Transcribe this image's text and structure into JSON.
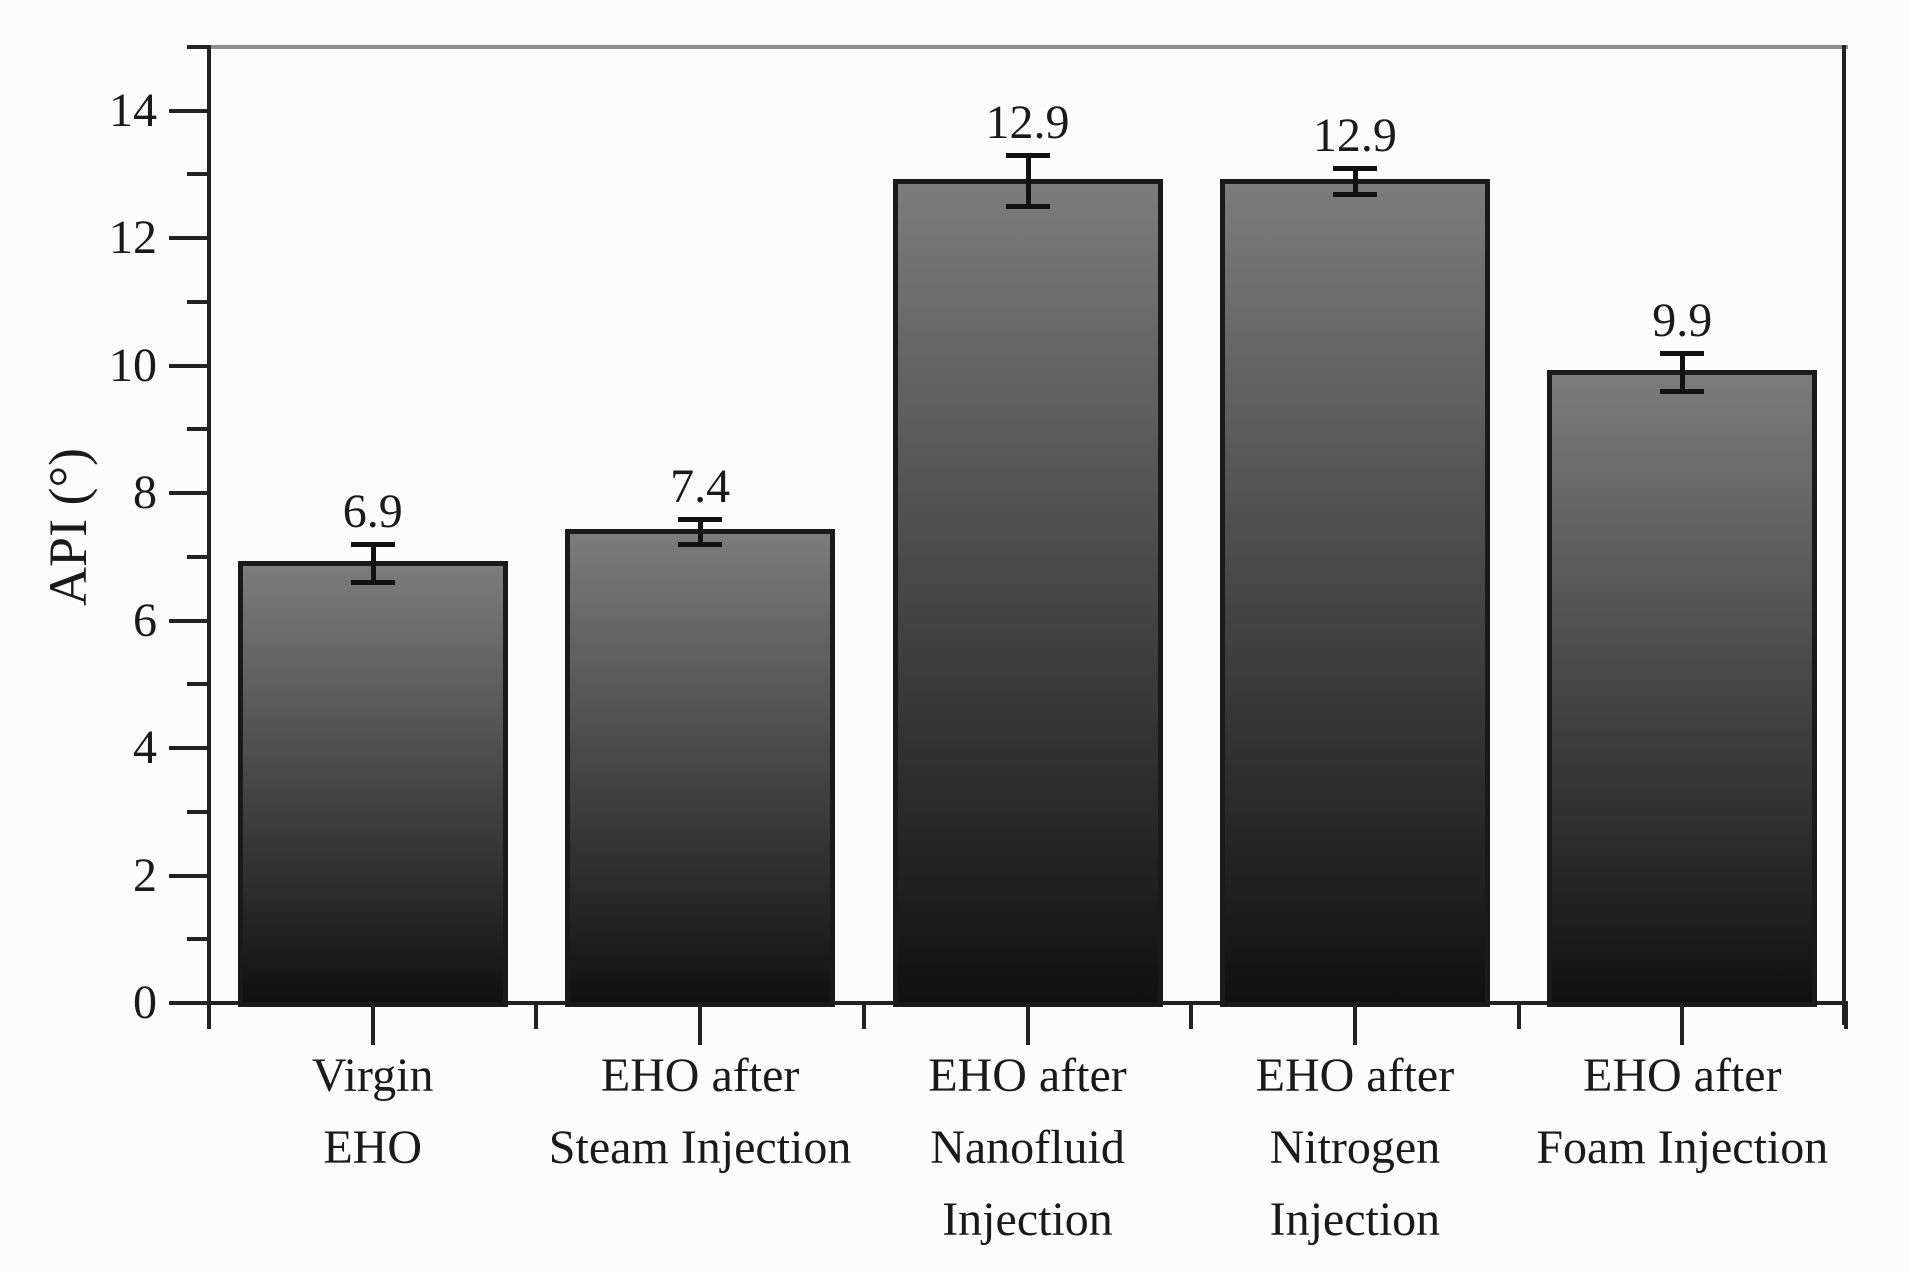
{
  "chart_data": {
    "type": "bar",
    "title": "",
    "xlabel": "",
    "ylabel": "API (°)",
    "categories": [
      "Virgin EHO",
      "EHO after Steam Injection",
      "EHO after Nanofluid Injection",
      "EHO after Nitrogen Injection",
      "EHO after Foam Injection"
    ],
    "category_lines": [
      [
        "Virgin",
        "EHO"
      ],
      [
        "EHO after",
        "Steam Injection"
      ],
      [
        "EHO after",
        "Nanofluid",
        "Injection"
      ],
      [
        "EHO after",
        "Nitrogen",
        "Injection"
      ],
      [
        "EHO after",
        "Foam Injection"
      ]
    ],
    "values": [
      6.9,
      7.4,
      12.9,
      12.9,
      9.9
    ],
    "value_labels": [
      "6.9",
      "7.4",
      "12.9",
      "12.9",
      "9.9"
    ],
    "errors": [
      0.3,
      0.2,
      0.4,
      0.2,
      0.3
    ],
    "ylim": [
      0,
      15
    ],
    "y_major_ticks": [
      0,
      2,
      4,
      6,
      8,
      10,
      12,
      14
    ],
    "y_minor_ticks": [
      1,
      3,
      5,
      7,
      9,
      11,
      13,
      15
    ],
    "grid": false,
    "legend": "none",
    "colors": {
      "bar_fill_top": "#7c7c7c",
      "bar_fill_bottom": "#101010",
      "bar_border": "#1a1a1a",
      "axis": "#222222",
      "top_border": "#8e8e8e",
      "error_bar": "#111111",
      "text": "#1a1a1a",
      "background": "#fcfcfc"
    }
  }
}
